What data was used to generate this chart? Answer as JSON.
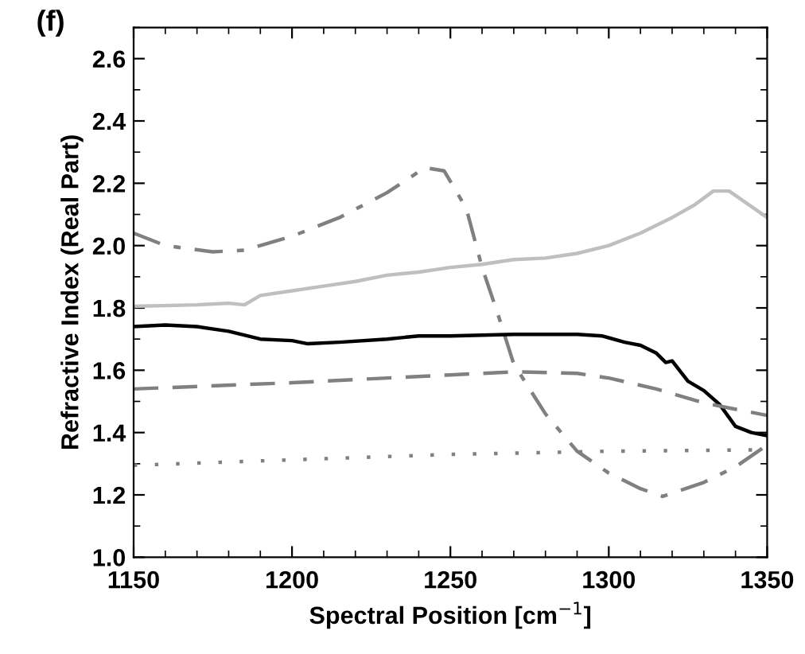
{
  "chart_data": {
    "type": "line",
    "title": "(f)",
    "xlabel": "Spectral Position [cm$^{−1}$]",
    "ylabel": "Refractive Index (Real Part)",
    "xlim": [
      1150,
      1350
    ],
    "xticks": [
      1150,
      1200,
      1250,
      1300,
      1350
    ],
    "ylim": [
      1.0,
      2.7
    ],
    "yticks": [
      {
        "value": 1.0,
        "label": "1.0"
      },
      1.2,
      1.4,
      1.6,
      1.8,
      {
        "value": 2.0,
        "label": "2.0"
      },
      2.2,
      2.4,
      2.6
    ],
    "grid": false,
    "series": [
      {
        "color": "#808080",
        "line_style": "dashdot",
        "x": [
          1150,
          1160,
          1175,
          1185,
          1200,
          1215,
          1230,
          1242,
          1248,
          1255,
          1260,
          1265,
          1270,
          1280,
          1290,
          1300,
          1310,
          1317,
          1330,
          1340,
          1350
        ],
        "values": [
          2.04,
          2.0,
          1.98,
          1.985,
          2.03,
          2.09,
          2.17,
          2.25,
          2.24,
          2.12,
          1.93,
          1.78,
          1.62,
          1.46,
          1.34,
          1.27,
          1.22,
          1.195,
          1.24,
          1.29,
          1.36
        ]
      },
      {
        "color": "#bfbfbf",
        "line_style": "solid",
        "x": [
          1150,
          1170,
          1180,
          1185,
          1190,
          1200,
          1210,
          1220,
          1230,
          1240,
          1250,
          1260,
          1270,
          1280,
          1290,
          1300,
          1310,
          1320,
          1327,
          1333,
          1338,
          1350
        ],
        "values": [
          1.805,
          1.81,
          1.815,
          1.81,
          1.84,
          1.855,
          1.87,
          1.885,
          1.905,
          1.915,
          1.93,
          1.94,
          1.955,
          1.96,
          1.975,
          2.0,
          2.04,
          2.09,
          2.13,
          2.175,
          2.175,
          2.09
        ]
      },
      {
        "color": "#000000",
        "line_style": "solid",
        "x": [
          1150,
          1160,
          1170,
          1180,
          1190,
          1200,
          1205,
          1215,
          1230,
          1240,
          1250,
          1270,
          1290,
          1298,
          1305,
          1310,
          1315,
          1318,
          1320,
          1325,
          1330,
          1335,
          1340,
          1345,
          1350
        ],
        "values": [
          1.74,
          1.745,
          1.74,
          1.725,
          1.7,
          1.695,
          1.685,
          1.69,
          1.7,
          1.71,
          1.71,
          1.715,
          1.715,
          1.71,
          1.69,
          1.68,
          1.655,
          1.625,
          1.63,
          1.565,
          1.535,
          1.49,
          1.42,
          1.4,
          1.39
        ]
      },
      {
        "color": "#808080",
        "line_style": "dashed",
        "x": [
          1150,
          1200,
          1250,
          1270,
          1290,
          1300,
          1315,
          1330,
          1350
        ],
        "values": [
          1.54,
          1.56,
          1.585,
          1.595,
          1.59,
          1.575,
          1.54,
          1.495,
          1.455
        ]
      },
      {
        "color": "#808080",
        "line_style": "dotted",
        "x": [
          1150,
          1250,
          1300,
          1350
        ],
        "values": [
          1.295,
          1.33,
          1.34,
          1.345
        ]
      }
    ]
  }
}
